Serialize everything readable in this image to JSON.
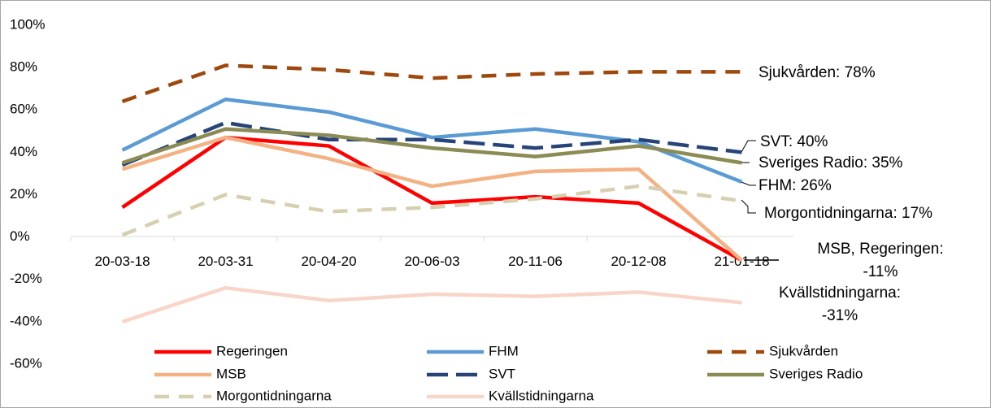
{
  "chart_data": {
    "type": "line",
    "categories": [
      "20-03-18",
      "20-03-31",
      "20-04-20",
      "20-06-03",
      "20-11-06",
      "20-12-08",
      "21-01-18"
    ],
    "series": [
      {
        "name": "Regeringen",
        "color": "#ff0000",
        "dashed": false,
        "values": [
          14,
          47,
          43,
          16,
          19,
          16,
          -11
        ]
      },
      {
        "name": "FHM",
        "color": "#5b9bd5",
        "dashed": false,
        "values": [
          41,
          65,
          59,
          47,
          51,
          45,
          26
        ]
      },
      {
        "name": "Sjukvården",
        "color": "#9e480e",
        "dashed": true,
        "values": [
          64,
          81,
          79,
          75,
          77,
          78,
          78
        ]
      },
      {
        "name": "MSB",
        "color": "#f4b183",
        "dashed": false,
        "values": [
          32,
          47,
          37,
          24,
          31,
          32,
          -11
        ]
      },
      {
        "name": "SVT",
        "color": "#264478",
        "dashed": true,
        "values": [
          34,
          54,
          46,
          46,
          42,
          46,
          40
        ]
      },
      {
        "name": "Sveriges Radio",
        "color": "#8b8b55",
        "dashed": false,
        "values": [
          35,
          51,
          48,
          42,
          38,
          43,
          35
        ]
      },
      {
        "name": "Morgontidningarna",
        "color": "#d6d0b0",
        "dashed": true,
        "values": [
          1,
          20,
          12,
          14,
          18,
          24,
          17
        ]
      },
      {
        "name": "Kvällstidningarna",
        "color": "#f8d5c8",
        "dashed": false,
        "values": [
          -40,
          -24,
          -30,
          -27,
          -28,
          -26,
          -31
        ]
      }
    ],
    "ylim": [
      -60,
      100
    ],
    "yticks": [
      {
        "value": -60,
        "label": "-60%"
      },
      {
        "value": -40,
        "label": "-40%"
      },
      {
        "value": -20,
        "label": "-20%"
      },
      {
        "value": 0,
        "label": "0%"
      },
      {
        "value": 20,
        "label": "20%"
      },
      {
        "value": 40,
        "label": "40%"
      },
      {
        "value": 60,
        "label": "60%"
      },
      {
        "value": 80,
        "label": "80%"
      },
      {
        "value": 100,
        "label": "100%"
      }
    ],
    "grid": false,
    "annotations": [
      {
        "lines": [
          "Sjukvården: 78%"
        ]
      },
      {
        "lines": [
          "SVT: 40%"
        ]
      },
      {
        "lines": [
          "Sveriges Radio: 35%"
        ]
      },
      {
        "lines": [
          "FHM: 26%"
        ]
      },
      {
        "lines": [
          "Morgontidningarna: 17%"
        ]
      },
      {
        "lines": [
          "MSB, Regeringen:",
          "-11%"
        ]
      },
      {
        "lines": [
          "Kvällstidningarna:",
          "-31%"
        ]
      }
    ]
  }
}
